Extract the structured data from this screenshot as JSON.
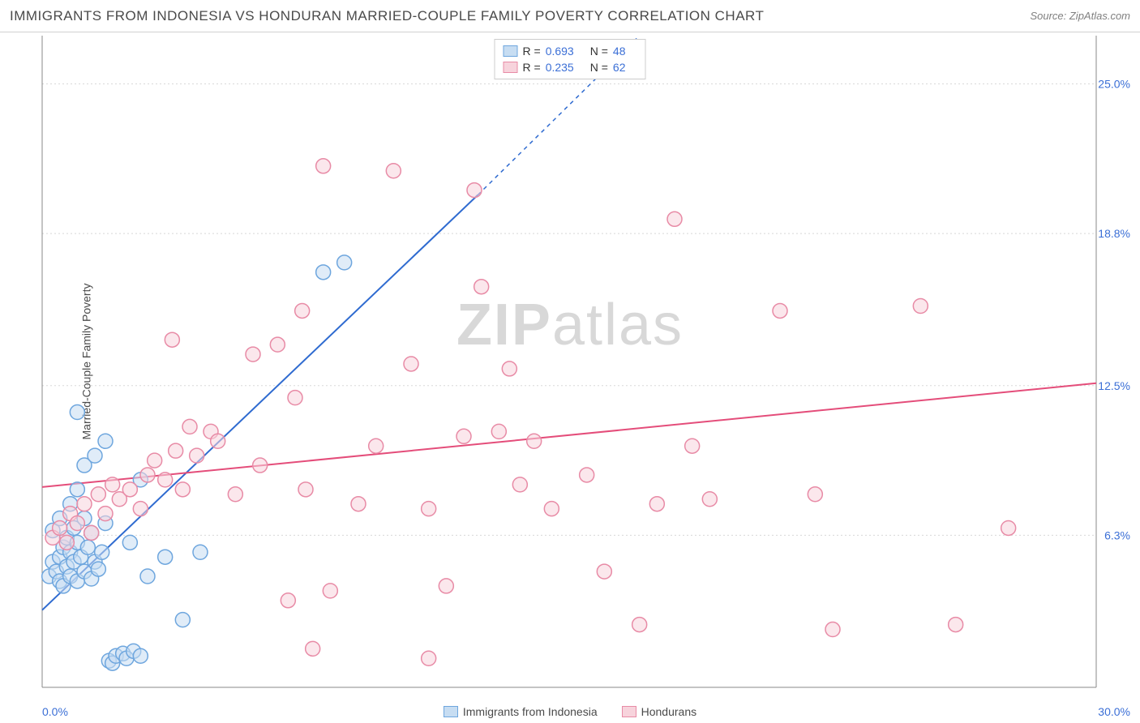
{
  "header": {
    "title": "IMMIGRANTS FROM INDONESIA VS HONDURAN MARRIED-COUPLE FAMILY POVERTY CORRELATION CHART",
    "source": "Source: ZipAtlas.com"
  },
  "watermark": {
    "prefix": "ZIP",
    "suffix": "atlas"
  },
  "chart": {
    "type": "scatter",
    "ylabel": "Married-Couple Family Poverty",
    "xlim": [
      0,
      30
    ],
    "ylim": [
      0,
      27
    ],
    "x_ticks": [
      {
        "v": 0,
        "label": "0.0%"
      },
      {
        "v": 30,
        "label": "30.0%"
      }
    ],
    "y_ticks": [
      {
        "v": 6.3,
        "label": "6.3%"
      },
      {
        "v": 12.5,
        "label": "12.5%"
      },
      {
        "v": 18.8,
        "label": "18.8%"
      },
      {
        "v": 25.0,
        "label": "25.0%"
      }
    ],
    "grid_color": "#d8d8d8",
    "axis_color": "#888888",
    "tick_label_color": "#3b6fd6",
    "background": "#ffffff",
    "marker_radius": 9,
    "marker_opacity": 0.55,
    "series": [
      {
        "name": "Immigrants from Indonesia",
        "fill": "#c7ddf2",
        "stroke": "#6ea6de",
        "R": "0.693",
        "N": "48",
        "trend": {
          "x1": 0,
          "y1": 3.2,
          "x2": 12.4,
          "y2": 20.4,
          "dash_x2": 17.0,
          "dash_y2": 27.0,
          "color": "#2f6bd0"
        },
        "points": [
          [
            0.2,
            4.6
          ],
          [
            0.3,
            5.2
          ],
          [
            0.4,
            4.8
          ],
          [
            0.5,
            4.4
          ],
          [
            0.5,
            5.4
          ],
          [
            0.6,
            4.2
          ],
          [
            0.6,
            5.8
          ],
          [
            0.7,
            5.0
          ],
          [
            0.7,
            6.2
          ],
          [
            0.8,
            4.6
          ],
          [
            0.8,
            5.6
          ],
          [
            0.9,
            6.6
          ],
          [
            0.9,
            5.2
          ],
          [
            1.0,
            4.4
          ],
          [
            1.0,
            6.0
          ],
          [
            1.1,
            5.4
          ],
          [
            1.2,
            4.8
          ],
          [
            1.2,
            7.0
          ],
          [
            1.3,
            5.8
          ],
          [
            1.4,
            4.5
          ],
          [
            1.4,
            6.4
          ],
          [
            1.5,
            5.2
          ],
          [
            1.6,
            4.9
          ],
          [
            1.7,
            5.6
          ],
          [
            1.8,
            6.8
          ],
          [
            1.9,
            1.1
          ],
          [
            2.0,
            1.0
          ],
          [
            2.1,
            1.3
          ],
          [
            2.3,
            1.4
          ],
          [
            2.4,
            1.2
          ],
          [
            2.6,
            1.5
          ],
          [
            2.8,
            1.3
          ],
          [
            1.0,
            11.4
          ],
          [
            0.3,
            6.5
          ],
          [
            0.5,
            7.0
          ],
          [
            0.8,
            7.6
          ],
          [
            1.0,
            8.2
          ],
          [
            1.2,
            9.2
          ],
          [
            1.5,
            9.6
          ],
          [
            1.8,
            10.2
          ],
          [
            4.5,
            5.6
          ],
          [
            3.0,
            4.6
          ],
          [
            3.5,
            5.4
          ],
          [
            2.5,
            6.0
          ],
          [
            4.0,
            2.8
          ],
          [
            8.0,
            17.2
          ],
          [
            8.6,
            17.6
          ],
          [
            2.8,
            8.6
          ]
        ]
      },
      {
        "name": "Hondurans",
        "fill": "#f7d3dc",
        "stroke": "#e88ba6",
        "R": "0.235",
        "N": "62",
        "trend": {
          "x1": 0,
          "y1": 8.3,
          "x2": 30,
          "y2": 12.6,
          "color": "#e44d7a"
        },
        "points": [
          [
            0.3,
            6.2
          ],
          [
            0.5,
            6.6
          ],
          [
            0.7,
            6.0
          ],
          [
            0.8,
            7.2
          ],
          [
            1.0,
            6.8
          ],
          [
            1.2,
            7.6
          ],
          [
            1.4,
            6.4
          ],
          [
            1.6,
            8.0
          ],
          [
            1.8,
            7.2
          ],
          [
            2.0,
            8.4
          ],
          [
            2.2,
            7.8
          ],
          [
            2.5,
            8.2
          ],
          [
            2.8,
            7.4
          ],
          [
            3.0,
            8.8
          ],
          [
            3.2,
            9.4
          ],
          [
            3.5,
            8.6
          ],
          [
            3.7,
            14.4
          ],
          [
            3.8,
            9.8
          ],
          [
            4.0,
            8.2
          ],
          [
            4.4,
            9.6
          ],
          [
            4.8,
            10.6
          ],
          [
            5.0,
            10.2
          ],
          [
            5.5,
            8.0
          ],
          [
            6.0,
            13.8
          ],
          [
            6.2,
            9.2
          ],
          [
            6.7,
            14.2
          ],
          [
            7.0,
            3.6
          ],
          [
            7.2,
            12.0
          ],
          [
            7.4,
            15.6
          ],
          [
            7.5,
            8.2
          ],
          [
            7.7,
            1.6
          ],
          [
            8.0,
            21.6
          ],
          [
            8.2,
            4.0
          ],
          [
            9.0,
            7.6
          ],
          [
            9.5,
            10.0
          ],
          [
            10.0,
            21.4
          ],
          [
            10.5,
            13.4
          ],
          [
            11.0,
            7.4
          ],
          [
            11.5,
            4.2
          ],
          [
            12.0,
            10.4
          ],
          [
            12.3,
            20.6
          ],
          [
            12.5,
            16.6
          ],
          [
            13.0,
            10.6
          ],
          [
            13.3,
            13.2
          ],
          [
            13.6,
            8.4
          ],
          [
            14.0,
            10.2
          ],
          [
            14.5,
            7.4
          ],
          [
            15.5,
            8.8
          ],
          [
            16.0,
            4.8
          ],
          [
            17.0,
            2.6
          ],
          [
            17.5,
            7.6
          ],
          [
            18.0,
            19.4
          ],
          [
            18.5,
            10.0
          ],
          [
            19.0,
            7.8
          ],
          [
            21.0,
            15.6
          ],
          [
            22.0,
            8.0
          ],
          [
            22.5,
            2.4
          ],
          [
            25.0,
            15.8
          ],
          [
            26.0,
            2.6
          ],
          [
            27.5,
            6.6
          ],
          [
            11.0,
            1.2
          ],
          [
            4.2,
            10.8
          ]
        ]
      }
    ],
    "bottom_legend": [
      {
        "label": "Immigrants from Indonesia",
        "fill": "#c7ddf2",
        "stroke": "#6ea6de"
      },
      {
        "label": "Hondurans",
        "fill": "#f7d3dc",
        "stroke": "#e88ba6"
      }
    ]
  }
}
